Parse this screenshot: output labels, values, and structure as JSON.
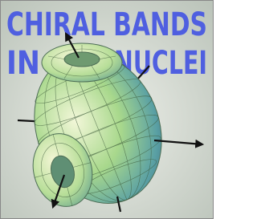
{
  "title": {
    "line1": "CHIRAL BANDS",
    "line2_left": "IN",
    "line2_right": "NUCLEI"
  }
}
